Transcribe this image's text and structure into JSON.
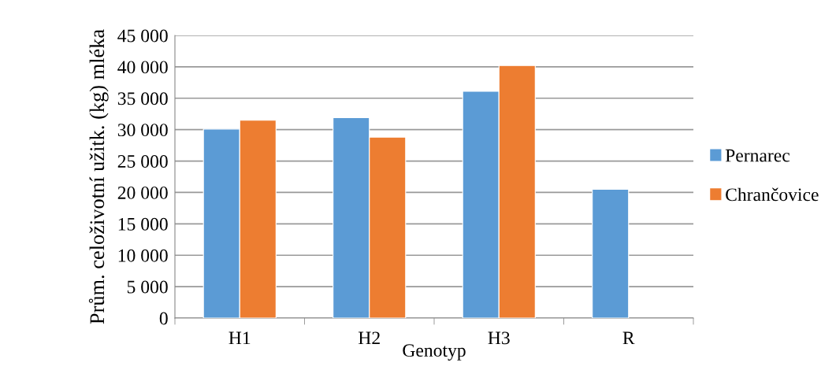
{
  "chart_data": {
    "type": "bar",
    "xlabel": "Genotyp",
    "ylabel": "Prům. celoživotní užitk. (kg) mléka",
    "categories": [
      "H1",
      "H2",
      "H3",
      "R"
    ],
    "series": [
      {
        "name": "Pernarec",
        "color": "#5b9bd5",
        "values": [
          30100,
          31900,
          36100,
          20500
        ]
      },
      {
        "name": "Chrančovice",
        "color": "#ed7d31",
        "values": [
          31500,
          28800,
          40200,
          null
        ]
      }
    ],
    "ylim": [
      0,
      45000
    ],
    "yticks": [
      0,
      {
        "value": 5000,
        "label": "5 000"
      },
      {
        "value": 10000,
        "label": "10 000"
      },
      {
        "value": 15000,
        "label": "15 000"
      },
      {
        "value": 20000,
        "label": "20 000"
      },
      {
        "value": 25000,
        "label": "25 000"
      },
      {
        "value": 30000,
        "label": "30 000"
      },
      {
        "value": 35000,
        "label": "35 000"
      },
      {
        "value": 40000,
        "label": "40 000"
      },
      {
        "value": 45000,
        "label": "45 000"
      }
    ],
    "grid": "y",
    "legend": "right"
  }
}
